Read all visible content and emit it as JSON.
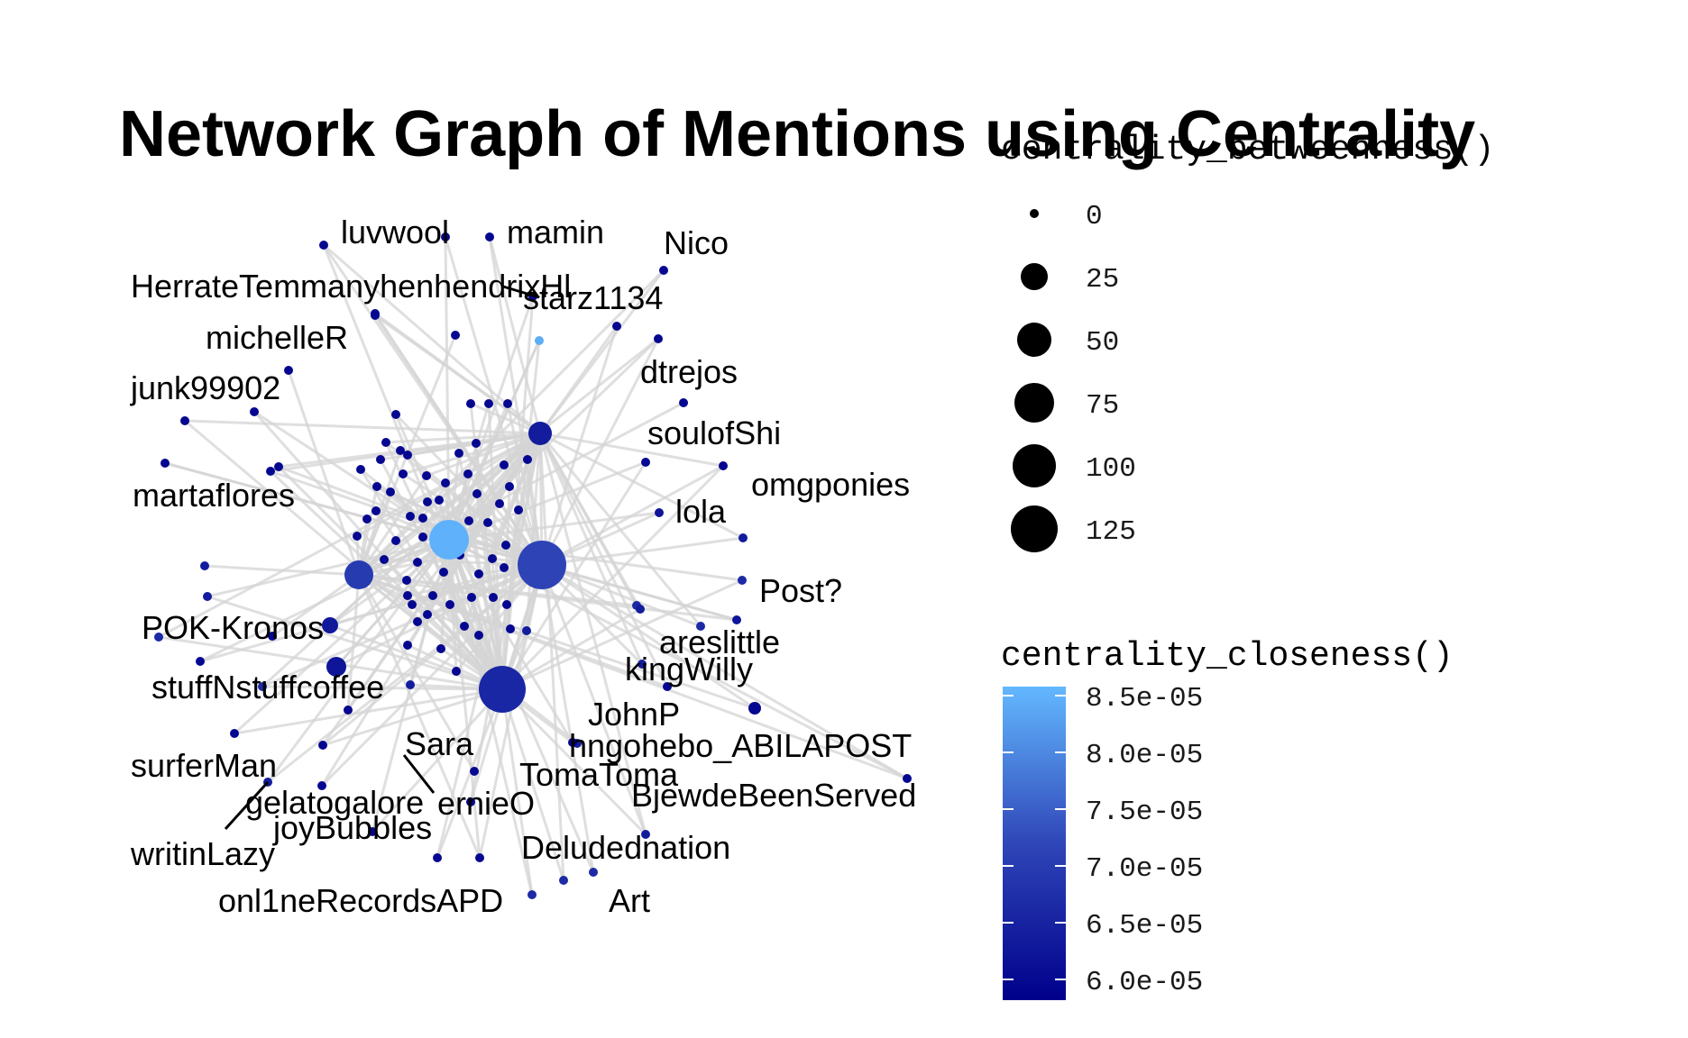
{
  "title": "Network Graph of Mentions using Centrality",
  "legend_betweenness": {
    "title": "centrality_betweenness()",
    "entries": [
      {
        "label": "0",
        "value": 0
      },
      {
        "label": "25",
        "value": 25
      },
      {
        "label": "50",
        "value": 50
      },
      {
        "label": "75",
        "value": 75
      },
      {
        "label": "100",
        "value": 100
      },
      {
        "label": "125",
        "value": 125
      }
    ]
  },
  "legend_closeness": {
    "title": "centrality_closeness()",
    "labels": [
      "8.5e-05",
      "8.0e-05",
      "7.5e-05",
      "7.0e-05",
      "6.5e-05",
      "6.0e-05"
    ],
    "low_color": "#00008b",
    "high_color": "#63b8ff"
  },
  "labels": [
    "luvwool",
    "mamin",
    "Nico",
    "HerrateTemmanyhenhendrixHl",
    "starz1134",
    "michelleR",
    "dtrejos",
    "junk99902",
    "soulofShi",
    "omgponies",
    "martaflores",
    "lola",
    "Post?",
    "POK-Kronos",
    "areslittle",
    "kingWilly",
    "stuffNstuffcoffee",
    "JohnP",
    "Sara",
    "hngohebo_ABILAPOST",
    "surferMan",
    "TomaToma",
    "gelatogalore",
    "ernieO",
    "BjewdeBeenServed",
    "joyBubbles",
    "writinLazy",
    "Deludednation",
    "onl1neRecordsAPD",
    "Art"
  ]
}
